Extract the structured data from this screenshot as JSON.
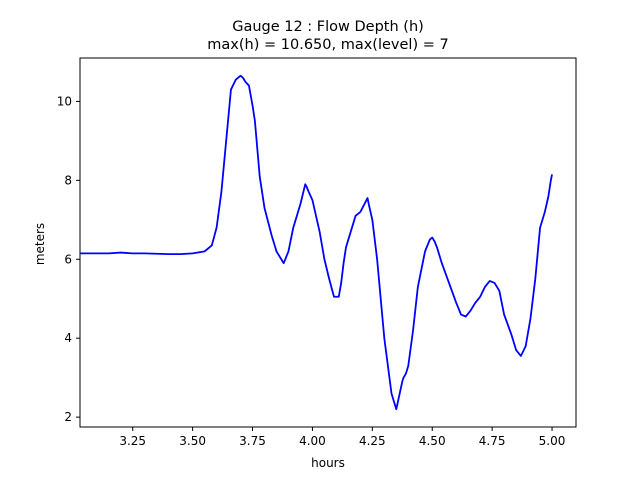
{
  "chart_data": {
    "type": "line",
    "title_lines": [
      "Gauge 12 : Flow Depth (h)",
      "max(h) =  10.650,    max(level) = 7"
    ],
    "xlabel": "hours",
    "ylabel": "meters",
    "xlim": [
      3.03,
      5.1
    ],
    "ylim": [
      1.75,
      11.1
    ],
    "xticks": [
      3.25,
      3.5,
      3.75,
      4.0,
      4.25,
      4.5,
      4.75,
      5.0
    ],
    "xtick_labels": [
      "3.25",
      "3.50",
      "3.75",
      "4.00",
      "4.25",
      "4.50",
      "4.75",
      "5.00"
    ],
    "yticks": [
      2,
      4,
      6,
      8,
      10
    ],
    "ytick_labels": [
      "2",
      "4",
      "6",
      "8",
      "10"
    ],
    "grid": false,
    "line_color": "#0000ff",
    "series": [
      {
        "x": [
          3.03,
          3.1,
          3.15,
          3.2,
          3.25,
          3.3,
          3.35,
          3.4,
          3.45,
          3.5,
          3.55,
          3.58,
          3.6,
          3.62,
          3.64,
          3.66,
          3.68,
          3.69,
          3.7,
          3.71,
          3.72,
          3.735,
          3.75,
          3.76,
          3.78,
          3.8,
          3.83,
          3.85,
          3.87,
          3.88,
          3.9,
          3.92,
          3.95,
          3.97,
          3.975,
          3.985,
          4.0,
          4.03,
          4.05,
          4.07,
          4.09,
          4.11,
          4.12,
          4.13,
          4.14,
          4.16,
          4.175,
          4.18,
          4.2,
          4.23,
          4.235,
          4.25,
          4.27,
          4.3,
          4.33,
          4.35,
          4.375,
          4.38,
          4.39,
          4.4,
          4.42,
          4.44,
          4.47,
          4.49,
          4.5,
          4.505,
          4.51,
          4.52,
          4.54,
          4.57,
          4.6,
          4.62,
          4.64,
          4.66,
          4.68,
          4.7,
          4.72,
          4.74,
          4.76,
          4.78,
          4.8,
          4.83,
          4.85,
          4.87,
          4.89,
          4.91,
          4.93,
          4.95,
          4.97,
          4.985,
          4.995,
          5.0
        ],
        "y": [
          6.15,
          6.15,
          6.15,
          6.17,
          6.15,
          6.15,
          6.14,
          6.13,
          6.13,
          6.15,
          6.2,
          6.35,
          6.8,
          7.7,
          9.0,
          10.3,
          10.55,
          10.6,
          10.65,
          10.6,
          10.5,
          10.4,
          9.9,
          9.5,
          8.1,
          7.3,
          6.6,
          6.2,
          6.0,
          5.9,
          6.2,
          6.8,
          7.4,
          7.9,
          7.85,
          7.7,
          7.5,
          6.7,
          6.0,
          5.5,
          5.05,
          5.05,
          5.4,
          5.9,
          6.3,
          6.7,
          7.0,
          7.1,
          7.2,
          7.55,
          7.4,
          7.0,
          6.0,
          4.0,
          2.6,
          2.2,
          2.9,
          3.0,
          3.1,
          3.3,
          4.2,
          5.3,
          6.2,
          6.5,
          6.55,
          6.5,
          6.45,
          6.3,
          5.9,
          5.4,
          4.9,
          4.6,
          4.55,
          4.7,
          4.9,
          5.05,
          5.3,
          5.45,
          5.4,
          5.2,
          4.6,
          4.1,
          3.7,
          3.55,
          3.8,
          4.5,
          5.5,
          6.8,
          7.2,
          7.6,
          8.0,
          8.15
        ]
      }
    ]
  }
}
